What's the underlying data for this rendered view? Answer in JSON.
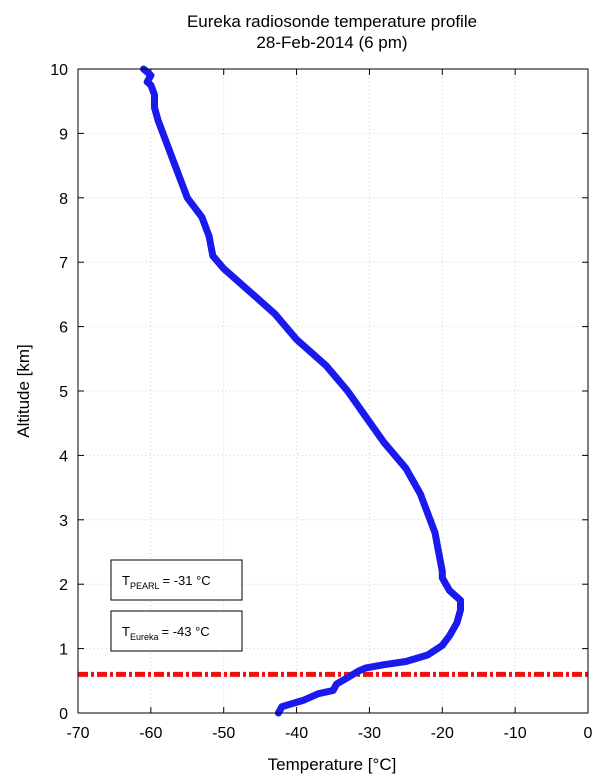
{
  "chart_data": {
    "type": "line",
    "title": "Eureka radiosonde temperature profile",
    "subtitle": "28-Feb-2014 (6 pm)",
    "xlabel_pre": "Temperature [",
    "xlabel_unit": "°C",
    "xlabel_post": "]",
    "ylabel": "Altitude [km]",
    "xlim": [
      -70,
      0
    ],
    "ylim": [
      0,
      10
    ],
    "xticks": [
      "-70",
      "-60",
      "-50",
      "-40",
      "-30",
      "-20",
      "-10",
      "0"
    ],
    "yticks": [
      "0",
      "1",
      "2",
      "3",
      "4",
      "5",
      "6",
      "7",
      "8",
      "9",
      "10"
    ],
    "grid": true,
    "series": [
      {
        "color": "#1a1aee",
        "x": [
          -42.5,
          -42,
          -39,
          -37,
          -35,
          -34.5,
          -33,
          -31.5,
          -30.5,
          -28,
          -25,
          -22,
          -20,
          -19,
          -18,
          -17.5,
          -17.5,
          -18,
          -19,
          -19.5,
          -20,
          -20,
          -20.5,
          -21,
          -22,
          -23,
          -25,
          -28,
          -30.5,
          -33,
          -36,
          -40,
          -43,
          -46,
          -48,
          -50,
          -51.5,
          -52,
          -53,
          -55,
          -56,
          -57,
          -58,
          -59,
          -59.5,
          -59.5,
          -60,
          -60.5,
          -60,
          -61
        ],
        "y": [
          0.0,
          0.1,
          0.2,
          0.3,
          0.35,
          0.45,
          0.55,
          0.65,
          0.7,
          0.75,
          0.8,
          0.9,
          1.05,
          1.2,
          1.4,
          1.6,
          1.75,
          1.8,
          1.9,
          2.0,
          2.1,
          2.2,
          2.5,
          2.8,
          3.1,
          3.4,
          3.8,
          4.2,
          4.6,
          5.0,
          5.4,
          5.8,
          6.2,
          6.5,
          6.7,
          6.9,
          7.1,
          7.4,
          7.7,
          8.0,
          8.3,
          8.6,
          8.9,
          9.2,
          9.4,
          9.6,
          9.75,
          9.8,
          9.9,
          10.0
        ]
      }
    ],
    "reference_line": {
      "y": 0.6,
      "color": "#ee1111",
      "style": "dash-dot"
    },
    "annotations": [
      {
        "main": "T",
        "sub": "PEARL",
        "text": "= -31 °C"
      },
      {
        "main": "T",
        "sub": "Eureka",
        "text": "= -43 °C"
      }
    ]
  }
}
